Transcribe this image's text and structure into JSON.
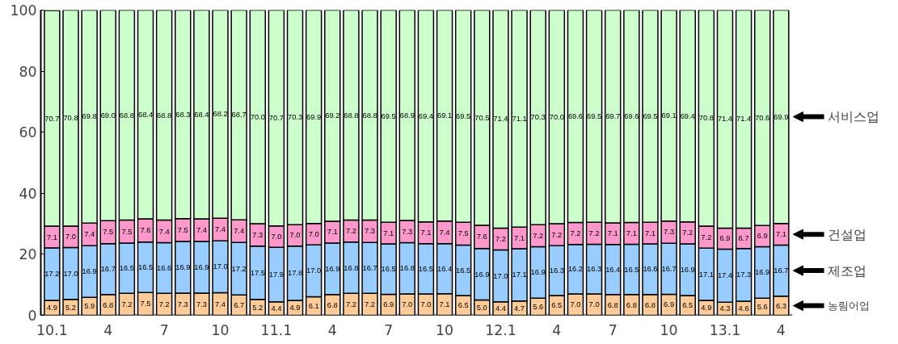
{
  "chart_data": {
    "type": "bar",
    "stacked": true,
    "categories": [
      "10.1",
      null,
      null,
      "4",
      null,
      null,
      "7",
      null,
      null,
      "10",
      null,
      null,
      "11.1",
      null,
      null,
      "4",
      null,
      null,
      "7",
      null,
      null,
      "10",
      null,
      null,
      "12.1",
      null,
      null,
      "4",
      null,
      null,
      "7",
      null,
      null,
      "10",
      null,
      null,
      "13.1",
      null,
      null,
      "4"
    ],
    "series": [
      {
        "name": "농림어업",
        "color": "#ffcc99",
        "values": [
          4.9,
          5.2,
          5.9,
          6.8,
          7.2,
          7.5,
          7.2,
          7.3,
          7.3,
          7.4,
          6.7,
          5.2,
          4.4,
          4.9,
          6.1,
          6.8,
          7.2,
          7.2,
          6.9,
          7.0,
          7.0,
          7.1,
          6.5,
          5.0,
          4.4,
          4.7,
          5.6,
          6.5,
          7.0,
          7.0,
          6.8,
          6.8,
          6.8,
          6.9,
          6.5,
          4.9,
          4.3,
          4.6,
          5.6,
          6.3
        ],
        "value_labels": [
          "4.9",
          "5.2",
          "5.9",
          "6.8",
          "7.2",
          "7.5",
          "7.2",
          "7.3",
          "7.3",
          "7.4",
          "6.7",
          "5.2",
          "4.4",
          "4.9",
          "6.1",
          "6.8",
          "7.2",
          "7.2",
          "6.9",
          "7.0",
          "7.0",
          "7.1",
          "6.5",
          "5.0",
          "4.4",
          "4.7",
          "5.6",
          "6.5",
          "7.0",
          "7.0",
          "6.8",
          "6.8",
          "6.8",
          "6.9",
          "6.5",
          "4.9",
          "4.3",
          "4.6",
          "5.6",
          "6.3"
        ]
      },
      {
        "name": "제조업",
        "color": "#99ccff",
        "values": [
          17.2,
          17.0,
          16.9,
          16.7,
          16.5,
          16.5,
          16.6,
          16.9,
          16.9,
          17.0,
          17.2,
          17.5,
          17.9,
          17.8,
          17.0,
          16.9,
          16.8,
          16.7,
          16.5,
          16.8,
          16.5,
          16.4,
          16.5,
          16.9,
          17.0,
          17.1,
          16.9,
          16.3,
          16.2,
          16.3,
          16.4,
          16.5,
          16.6,
          16.7,
          16.9,
          17.1,
          17.4,
          17.3,
          16.9,
          16.7
        ],
        "value_labels": [
          "17.2",
          "17.0",
          "16.9",
          "16.7",
          "16.5",
          "16.5",
          "16.6",
          "16.9",
          "16.9",
          "17.0",
          "17.2",
          "17.5",
          "17.9",
          "17.8",
          "17.0",
          "16.9",
          "16.8",
          "16.7",
          "16.5",
          "16.8",
          "16.5",
          "16.4",
          "16.5",
          "16.9",
          "17.0",
          "17.1",
          "16.9",
          "16.3",
          "16.2",
          "16.3",
          "16.4",
          "16.5",
          "16.6",
          "16.7",
          "16.9",
          "17.1",
          "17.4",
          "17.3",
          "16.9",
          "16.7"
        ]
      },
      {
        "name": "건설업",
        "color": "#ff99cc",
        "values": [
          7.1,
          7.0,
          7.4,
          7.5,
          7.5,
          7.6,
          7.4,
          7.5,
          7.4,
          7.4,
          7.4,
          7.3,
          7.0,
          7.0,
          7.0,
          7.1,
          7.2,
          7.3,
          7.1,
          7.3,
          7.1,
          7.4,
          7.5,
          7.6,
          7.2,
          7.1,
          7.2,
          7.2,
          7.2,
          7.2,
          7.1,
          7.1,
          7.1,
          7.3,
          7.2,
          7.2,
          6.9,
          6.7,
          6.9,
          7.1
        ],
        "value_labels": [
          "7.1",
          "7.0",
          "7.4",
          "7.5",
          "7.5",
          "7.6",
          "7.4",
          "7.5",
          "7.4",
          "7.4",
          "7.4",
          "7.3",
          "7.0",
          "7.0",
          "7.0",
          "7.1",
          "7.2",
          "7.3",
          "7.1",
          "7.3",
          "7.1",
          "7.4",
          "7.5",
          "7.6",
          "7.2",
          "7.1",
          "7.2",
          "7.2",
          "7.2",
          "7.2",
          "7.1",
          "7.1",
          "7.1",
          "7.3",
          "7.2",
          "7.2",
          "6.9",
          "6.7",
          "6.9",
          "7.1"
        ]
      },
      {
        "name": "서비스업",
        "color": "#ccffcc",
        "values": [
          70.7,
          70.8,
          69.8,
          69.0,
          68.8,
          68.4,
          68.8,
          68.3,
          68.4,
          68.2,
          68.7,
          70.0,
          70.7,
          70.3,
          69.9,
          69.2,
          68.8,
          68.8,
          69.5,
          68.9,
          69.4,
          69.1,
          69.5,
          70.5,
          71.4,
          71.1,
          70.3,
          70.0,
          69.6,
          69.5,
          69.7,
          69.6,
          69.5,
          69.1,
          69.4,
          70.8,
          71.4,
          71.4,
          70.6,
          69.9
        ],
        "value_labels": [
          "70.7",
          "70.8",
          "69.8",
          "69.0",
          "68.8",
          "68.4",
          "68.8",
          "68.3",
          "68.4",
          "68.2",
          "68.7",
          "70.0",
          "70.7",
          "70.3",
          "69.9",
          "69.2",
          "68.8",
          "68.8",
          "69.5",
          "68.9",
          "69.4",
          "69.1",
          "69.5",
          "70.5",
          "71.4",
          "71.1",
          "70.3",
          "70.0",
          "69.6",
          "69.5",
          "69.7",
          "69.6",
          "69.5",
          "69.1",
          "69.4",
          "70.8",
          "71.4",
          "71.4",
          "70.6",
          "69.9"
        ]
      }
    ],
    "legend": "right",
    "ylim": [
      0,
      100
    ],
    "yticks": [
      0,
      20,
      40,
      60,
      80,
      100
    ],
    "grid": false
  }
}
